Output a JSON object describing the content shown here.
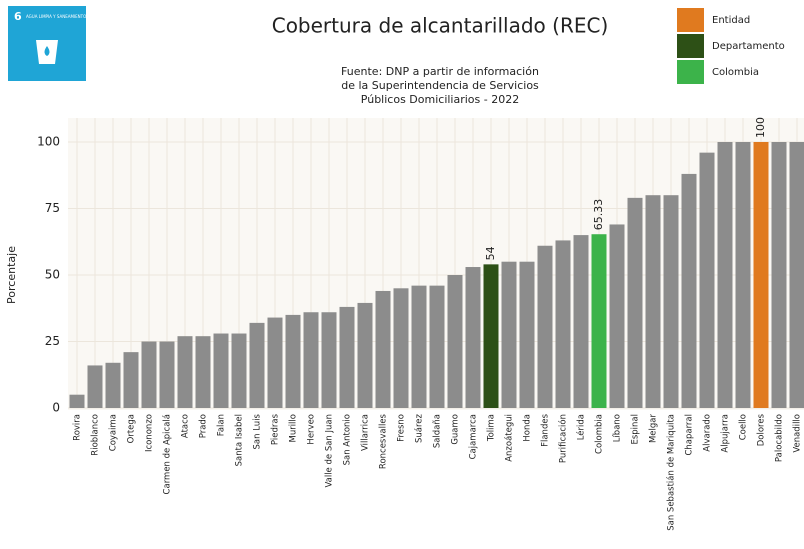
{
  "badge": {
    "number": "6",
    "text": "AGUA LIMPIA Y SANEAMIENTO"
  },
  "chart_data": {
    "type": "bar",
    "title": "Cobertura de alcantarillado (REC)",
    "subtitle": [
      "Fuente: DNP a partir de información",
      "de la Superintendencia de Servicios",
      "Públicos Domiciliarios - 2022"
    ],
    "ylabel": "Porcentaje",
    "categories": [
      "Rovira",
      "Rioblanco",
      "Coyaima",
      "Ortega",
      "Icononzo",
      "Carmen de Apicalá",
      "Ataco",
      "Prado",
      "Falan",
      "Santa Isabel",
      "San Luis",
      "Piedras",
      "Murillo",
      "Herveo",
      "Valle de San Juan",
      "San Antonio",
      "Villarrica",
      "Roncesvalles",
      "Fresno",
      "Suárez",
      "Saldaña",
      "Guamo",
      "Cajamarca",
      "Tolima",
      "Anzoátegui",
      "Honda",
      "Flandes",
      "Purificación",
      "Lérida",
      "Colombia",
      "Líbano",
      "Espinal",
      "Melgar",
      "San Sebastián de Mariquita",
      "Chaparral",
      "Alvarado",
      "Alpujarra",
      "Coello",
      "Dolores",
      "Palocabildo",
      "Venadillo"
    ],
    "values": [
      5,
      16,
      17,
      21,
      25,
      25,
      27,
      27,
      28,
      28,
      32,
      34,
      35,
      36,
      36,
      38,
      39.5,
      44,
      45,
      46,
      46,
      50,
      53,
      54,
      55,
      55,
      61,
      63,
      65,
      65.33,
      69,
      79,
      80,
      80,
      88,
      96,
      100,
      100,
      100,
      100,
      100
    ],
    "colors": [
      "#8c8c8c",
      "#8c8c8c",
      "#8c8c8c",
      "#8c8c8c",
      "#8c8c8c",
      "#8c8c8c",
      "#8c8c8c",
      "#8c8c8c",
      "#8c8c8c",
      "#8c8c8c",
      "#8c8c8c",
      "#8c8c8c",
      "#8c8c8c",
      "#8c8c8c",
      "#8c8c8c",
      "#8c8c8c",
      "#8c8c8c",
      "#8c8c8c",
      "#8c8c8c",
      "#8c8c8c",
      "#8c8c8c",
      "#8c8c8c",
      "#8c8c8c",
      "#2d5016",
      "#8c8c8c",
      "#8c8c8c",
      "#8c8c8c",
      "#8c8c8c",
      "#8c8c8c",
      "#3cb34a",
      "#8c8c8c",
      "#8c8c8c",
      "#8c8c8c",
      "#8c8c8c",
      "#8c8c8c",
      "#8c8c8c",
      "#8c8c8c",
      "#8c8c8c",
      "#e07a1f",
      "#8c8c8c",
      "#8c8c8c"
    ],
    "legend": [
      {
        "name": "Entidad",
        "color": "#e07a1f"
      },
      {
        "name": "Departamento",
        "color": "#2d5016"
      },
      {
        "name": "Colombia",
        "color": "#3cb34a"
      }
    ],
    "ylim": [
      0,
      100
    ],
    "yticks": [
      0,
      25,
      50,
      75,
      100
    ],
    "grid": true
  }
}
